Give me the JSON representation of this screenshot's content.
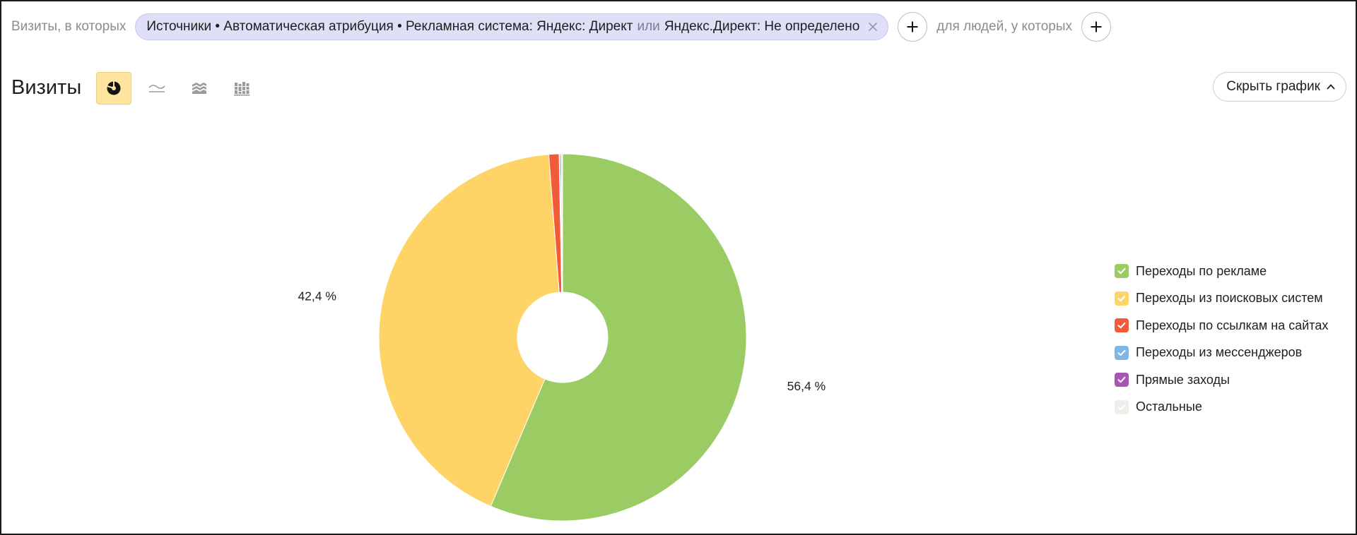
{
  "filter_bar": {
    "visits_prefix": "Визиты, в которых",
    "segment": {
      "condition": "Источники • Автоматическая атрибуция • Рекламная система: Яндекс: Директ",
      "operator": "или",
      "alternative": "Яндекс.Директ: Не определено",
      "remove_icon": "close-icon"
    },
    "add_visit_condition_icon": "plus-icon",
    "people_prefix": "для людей, у которых",
    "add_people_condition_icon": "plus-icon"
  },
  "report": {
    "title": "Визиты",
    "chart_types": [
      {
        "icon": "pie-chart-icon",
        "active": true
      },
      {
        "icon": "line-chart-icon",
        "active": false
      },
      {
        "icon": "stacked-area-chart-icon",
        "active": false
      },
      {
        "icon": "stacked-bar-chart-icon",
        "active": false
      }
    ],
    "hide_chart_label": "Скрыть график",
    "hide_chart_icon": "chevron-up-icon",
    "accent_color": "#fee59d"
  },
  "chart_data": {
    "type": "pie",
    "donut": true,
    "legend_position": "right",
    "slices": [
      {
        "name": "Переходы по рекламе",
        "value": 56.4,
        "label": "56,4 %",
        "color": "#9bcb63",
        "checked": true
      },
      {
        "name": "Переходы из поисковых систем",
        "value": 42.4,
        "label": "42,4 %",
        "color": "#fed466",
        "checked": true
      },
      {
        "name": "Переходы по ссылкам на сайтах",
        "value": 0.9,
        "color": "#f25a3a",
        "checked": true
      },
      {
        "name": "Переходы из мессенджеров",
        "value": 0.1,
        "color": "#7eb7e5",
        "checked": true
      },
      {
        "name": "Прямые заходы",
        "value": 0.1,
        "color": "#a855b3",
        "checked": true
      },
      {
        "name": "Остальные",
        "value": 0.1,
        "color": "#efefea",
        "checked": true
      }
    ]
  }
}
